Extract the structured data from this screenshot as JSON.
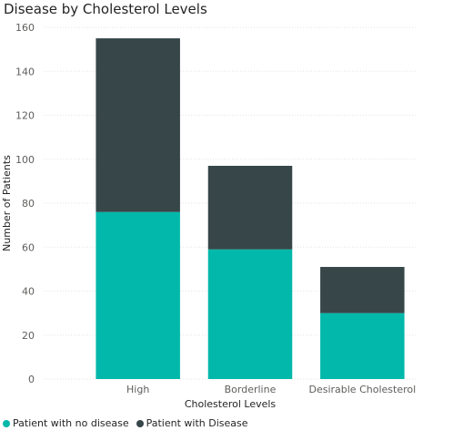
{
  "chart_data": {
    "type": "bar",
    "stacked": true,
    "title": "Disease by Cholesterol Levels",
    "xlabel": "Cholesterol Levels",
    "ylabel": "Number of Patients",
    "ylim": [
      0,
      160
    ],
    "yticks": [
      0,
      20,
      40,
      60,
      80,
      100,
      120,
      140,
      160
    ],
    "grid": true,
    "legend_position": "bottom-left",
    "categories": [
      "High",
      "Borderline",
      "Desirable Cholesterol"
    ],
    "series": [
      {
        "name": "Patient with no disease",
        "color": "#01b8aa",
        "values": [
          76,
          59,
          30
        ]
      },
      {
        "name": "Patient with Disease",
        "color": "#374649",
        "values": [
          79,
          38,
          21
        ]
      }
    ]
  }
}
